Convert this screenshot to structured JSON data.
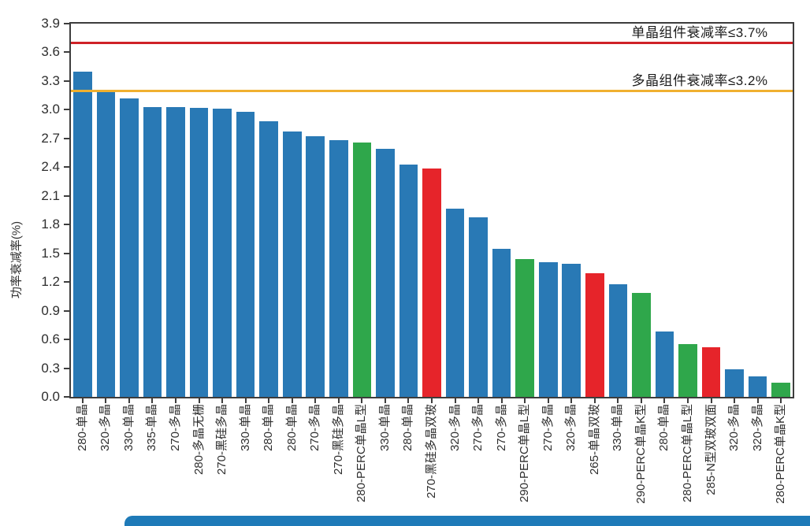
{
  "chart_data": {
    "type": "bar",
    "title": "",
    "xlabel": "",
    "ylabel": "功率衰减率(%)",
    "ylim": [
      0,
      3.9
    ],
    "grid": false,
    "yticks": [
      "0.0",
      "0.3",
      "0.6",
      "0.9",
      "1.2",
      "1.5",
      "1.8",
      "2.1",
      "2.4",
      "2.7",
      "3.0",
      "3.3",
      "3.6",
      "3.9"
    ],
    "categories": [
      "280-单晶",
      "320-多晶",
      "330-单晶",
      "335-单晶",
      "270-多晶",
      "280-多晶无栅",
      "270-黑硅多晶",
      "330-单晶",
      "280-单晶",
      "280-单晶",
      "270-多晶",
      "270-黑硅多晶",
      "280-PERC单晶L型",
      "330-单晶",
      "280-单晶",
      "270-黑硅多晶双玻",
      "320-多晶",
      "270-多晶",
      "270-多晶",
      "290-PERC单晶L型",
      "270-多晶",
      "320-多晶",
      "265-单晶双玻",
      "330-单晶",
      "290-PERC单晶K型",
      "280-单晶",
      "280-PERC单晶L型",
      "285-N型双玻双面",
      "320-多晶",
      "320-多晶",
      "280-PERC单晶K型"
    ],
    "values": [
      3.4,
      3.19,
      3.12,
      3.03,
      3.03,
      3.02,
      3.01,
      2.98,
      2.88,
      2.77,
      2.72,
      2.68,
      2.66,
      2.59,
      2.43,
      2.39,
      1.97,
      1.88,
      1.55,
      1.44,
      1.41,
      1.39,
      1.29,
      1.18,
      1.09,
      0.68,
      0.55,
      0.52,
      0.29,
      0.21,
      0.15
    ],
    "colors": [
      "blue",
      "blue",
      "blue",
      "blue",
      "blue",
      "blue",
      "blue",
      "blue",
      "blue",
      "blue",
      "blue",
      "blue",
      "green",
      "blue",
      "blue",
      "red",
      "blue",
      "blue",
      "blue",
      "green",
      "blue",
      "blue",
      "red",
      "blue",
      "green",
      "blue",
      "green",
      "red",
      "blue",
      "blue",
      "green"
    ],
    "palette": {
      "blue": "#2979b5",
      "green": "#2fa74b",
      "red": "#e6242a"
    },
    "reference_lines": [
      {
        "value": 3.7,
        "color": "#cf2127",
        "label": "单晶组件衰减率≤3.7%"
      },
      {
        "value": 3.2,
        "color": "#f0b02f",
        "label": "多晶组件衰减率≤3.2%"
      }
    ]
  },
  "page": {
    "bottom_banner_color": "#1e7ab8",
    "axis_color": "#3d3d3d"
  }
}
